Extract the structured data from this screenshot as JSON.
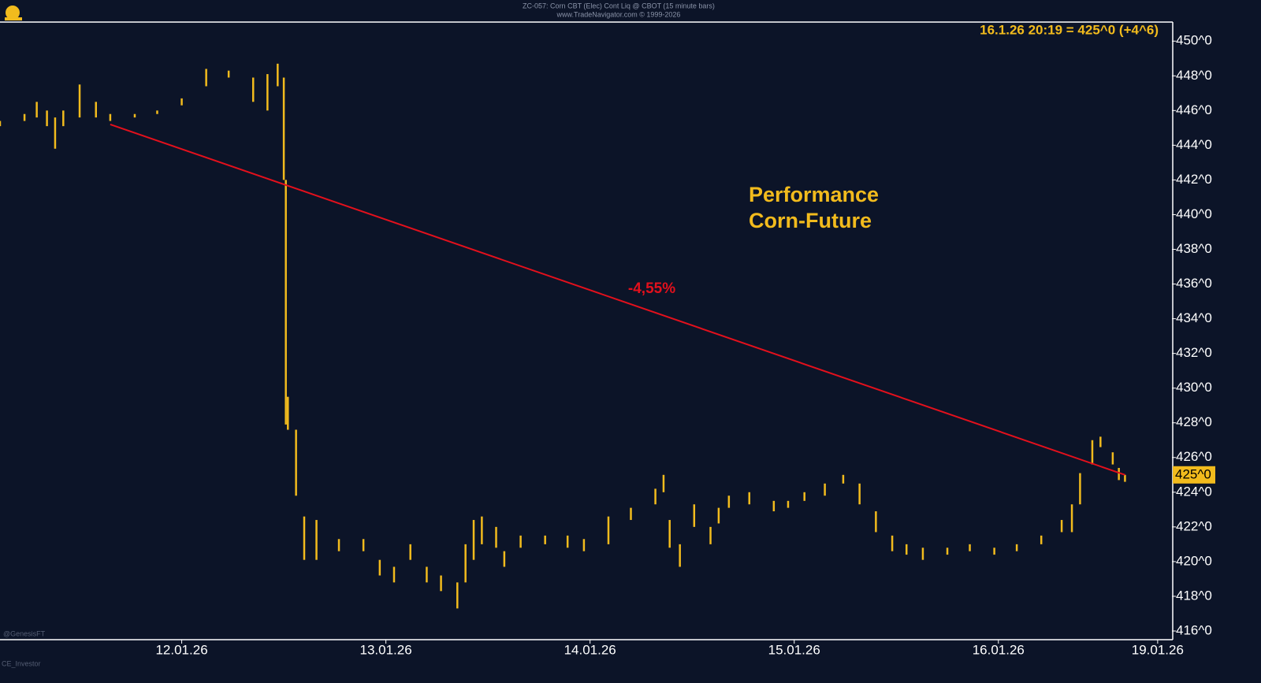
{
  "chart_data": {
    "type": "ohlc",
    "header": "ZC-057: Corn CBT (Elec) Cont Liq @ CBOT (15 minute bars)",
    "subheader": "www.TradeNavigator.com © 1999-2026",
    "quote": "16.1.26 20:19 = 425^0 (+4^6)",
    "title_lines": [
      "Performance",
      "Corn-Future"
    ],
    "annotation": "-4,55%",
    "source_label": "@GenesisFT",
    "footer_label": "CE_Investor",
    "color": "#f2bb1d",
    "trendline": {
      "x": [
        0.65,
        5.62
      ],
      "y": [
        445.2,
        425.0
      ],
      "color": "#e3101c"
    },
    "last_price": {
      "value": 425,
      "label": "425^0"
    },
    "x": [
      0.11,
      0.23,
      0.29,
      0.34,
      0.38,
      0.42,
      0.5,
      0.58,
      0.65,
      0.77,
      0.88,
      1.0,
      1.12,
      1.23,
      1.35,
      1.42,
      1.47,
      1.5,
      1.51,
      1.52,
      1.56,
      1.6,
      1.66,
      1.77,
      1.89,
      1.97,
      2.04,
      2.12,
      2.2,
      2.27,
      2.35,
      2.39,
      2.43,
      2.47,
      2.54,
      2.58,
      2.66,
      2.78,
      2.89,
      2.97,
      3.09,
      3.2,
      3.32,
      3.36,
      3.39,
      3.44,
      3.51,
      3.59,
      3.63,
      3.68,
      3.78,
      3.9,
      3.97,
      4.05,
      4.15,
      4.24,
      4.32,
      4.4,
      4.48,
      4.55,
      4.63,
      4.75,
      4.86,
      4.98,
      5.09,
      5.21,
      5.31,
      5.36,
      5.4,
      5.46,
      5.5,
      5.56,
      5.59,
      5.62
    ],
    "low": [
      445.1,
      445.4,
      445.6,
      445.1,
      443.8,
      445.1,
      445.6,
      445.6,
      445.4,
      445.6,
      445.8,
      446.3,
      447.4,
      447.9,
      446.5,
      446.0,
      447.4,
      442.0,
      427.9,
      427.6,
      423.8,
      420.1,
      420.1,
      420.6,
      420.6,
      419.2,
      418.8,
      420.1,
      418.8,
      418.3,
      417.3,
      418.8,
      420.1,
      421.0,
      420.8,
      419.7,
      420.8,
      421.0,
      420.8,
      420.6,
      421.0,
      422.4,
      423.3,
      424.0,
      420.8,
      419.7,
      422.0,
      421.0,
      422.2,
      423.1,
      423.3,
      422.9,
      423.1,
      423.5,
      423.8,
      424.5,
      423.3,
      421.7,
      420.6,
      420.4,
      420.1,
      420.4,
      420.6,
      420.4,
      420.6,
      421.0,
      421.7,
      421.7,
      423.3,
      425.6,
      426.6,
      425.6,
      424.7,
      424.6
    ],
    "high": [
      445.4,
      445.8,
      446.5,
      446.0,
      445.6,
      446.0,
      447.5,
      446.5,
      445.8,
      445.8,
      446.0,
      446.7,
      448.4,
      448.3,
      447.9,
      448.1,
      448.7,
      447.9,
      442.0,
      429.5,
      427.6,
      422.6,
      422.4,
      421.3,
      421.3,
      420.1,
      419.7,
      421.0,
      419.7,
      419.2,
      418.8,
      421.0,
      422.4,
      422.6,
      422.0,
      420.6,
      421.5,
      421.5,
      421.5,
      421.3,
      422.6,
      423.1,
      424.2,
      425.0,
      422.4,
      421.0,
      423.3,
      422.0,
      423.1,
      423.8,
      424.0,
      423.5,
      423.5,
      424.0,
      424.5,
      425.0,
      424.5,
      422.9,
      421.5,
      421.0,
      420.8,
      420.8,
      421.0,
      420.8,
      421.0,
      421.5,
      422.4,
      423.3,
      425.1,
      427.0,
      427.2,
      426.3,
      425.4,
      425.0
    ],
    "xlim": [
      0.11,
      5.85
    ],
    "xticks": [
      {
        "value": 1,
        "label": "12.01.26"
      },
      {
        "value": 2,
        "label": "13.01.26"
      },
      {
        "value": 3,
        "label": "14.01.26"
      },
      {
        "value": 4,
        "label": "15.01.26"
      },
      {
        "value": 5,
        "label": "16.01.26"
      },
      {
        "value": 5.78,
        "label": "19.01.26"
      }
    ],
    "ylim": [
      415.5,
      451.1
    ],
    "yticks": [
      {
        "value": 416,
        "label": "416^0"
      },
      {
        "value": 418,
        "label": "418^0"
      },
      {
        "value": 420,
        "label": "420^0"
      },
      {
        "value": 422,
        "label": "422^0"
      },
      {
        "value": 424,
        "label": "424^0"
      },
      {
        "value": 426,
        "label": "426^0"
      },
      {
        "value": 428,
        "label": "428^0"
      },
      {
        "value": 430,
        "label": "430^0"
      },
      {
        "value": 432,
        "label": "432^0"
      },
      {
        "value": 434,
        "label": "434^0"
      },
      {
        "value": 436,
        "label": "436^0"
      },
      {
        "value": 438,
        "label": "438^0"
      },
      {
        "value": 440,
        "label": "440^0"
      },
      {
        "value": 442,
        "label": "442^0"
      },
      {
        "value": 444,
        "label": "444^0"
      },
      {
        "value": 446,
        "label": "446^0"
      },
      {
        "value": 448,
        "label": "448^0"
      },
      {
        "value": 450,
        "label": "450^0"
      }
    ]
  }
}
